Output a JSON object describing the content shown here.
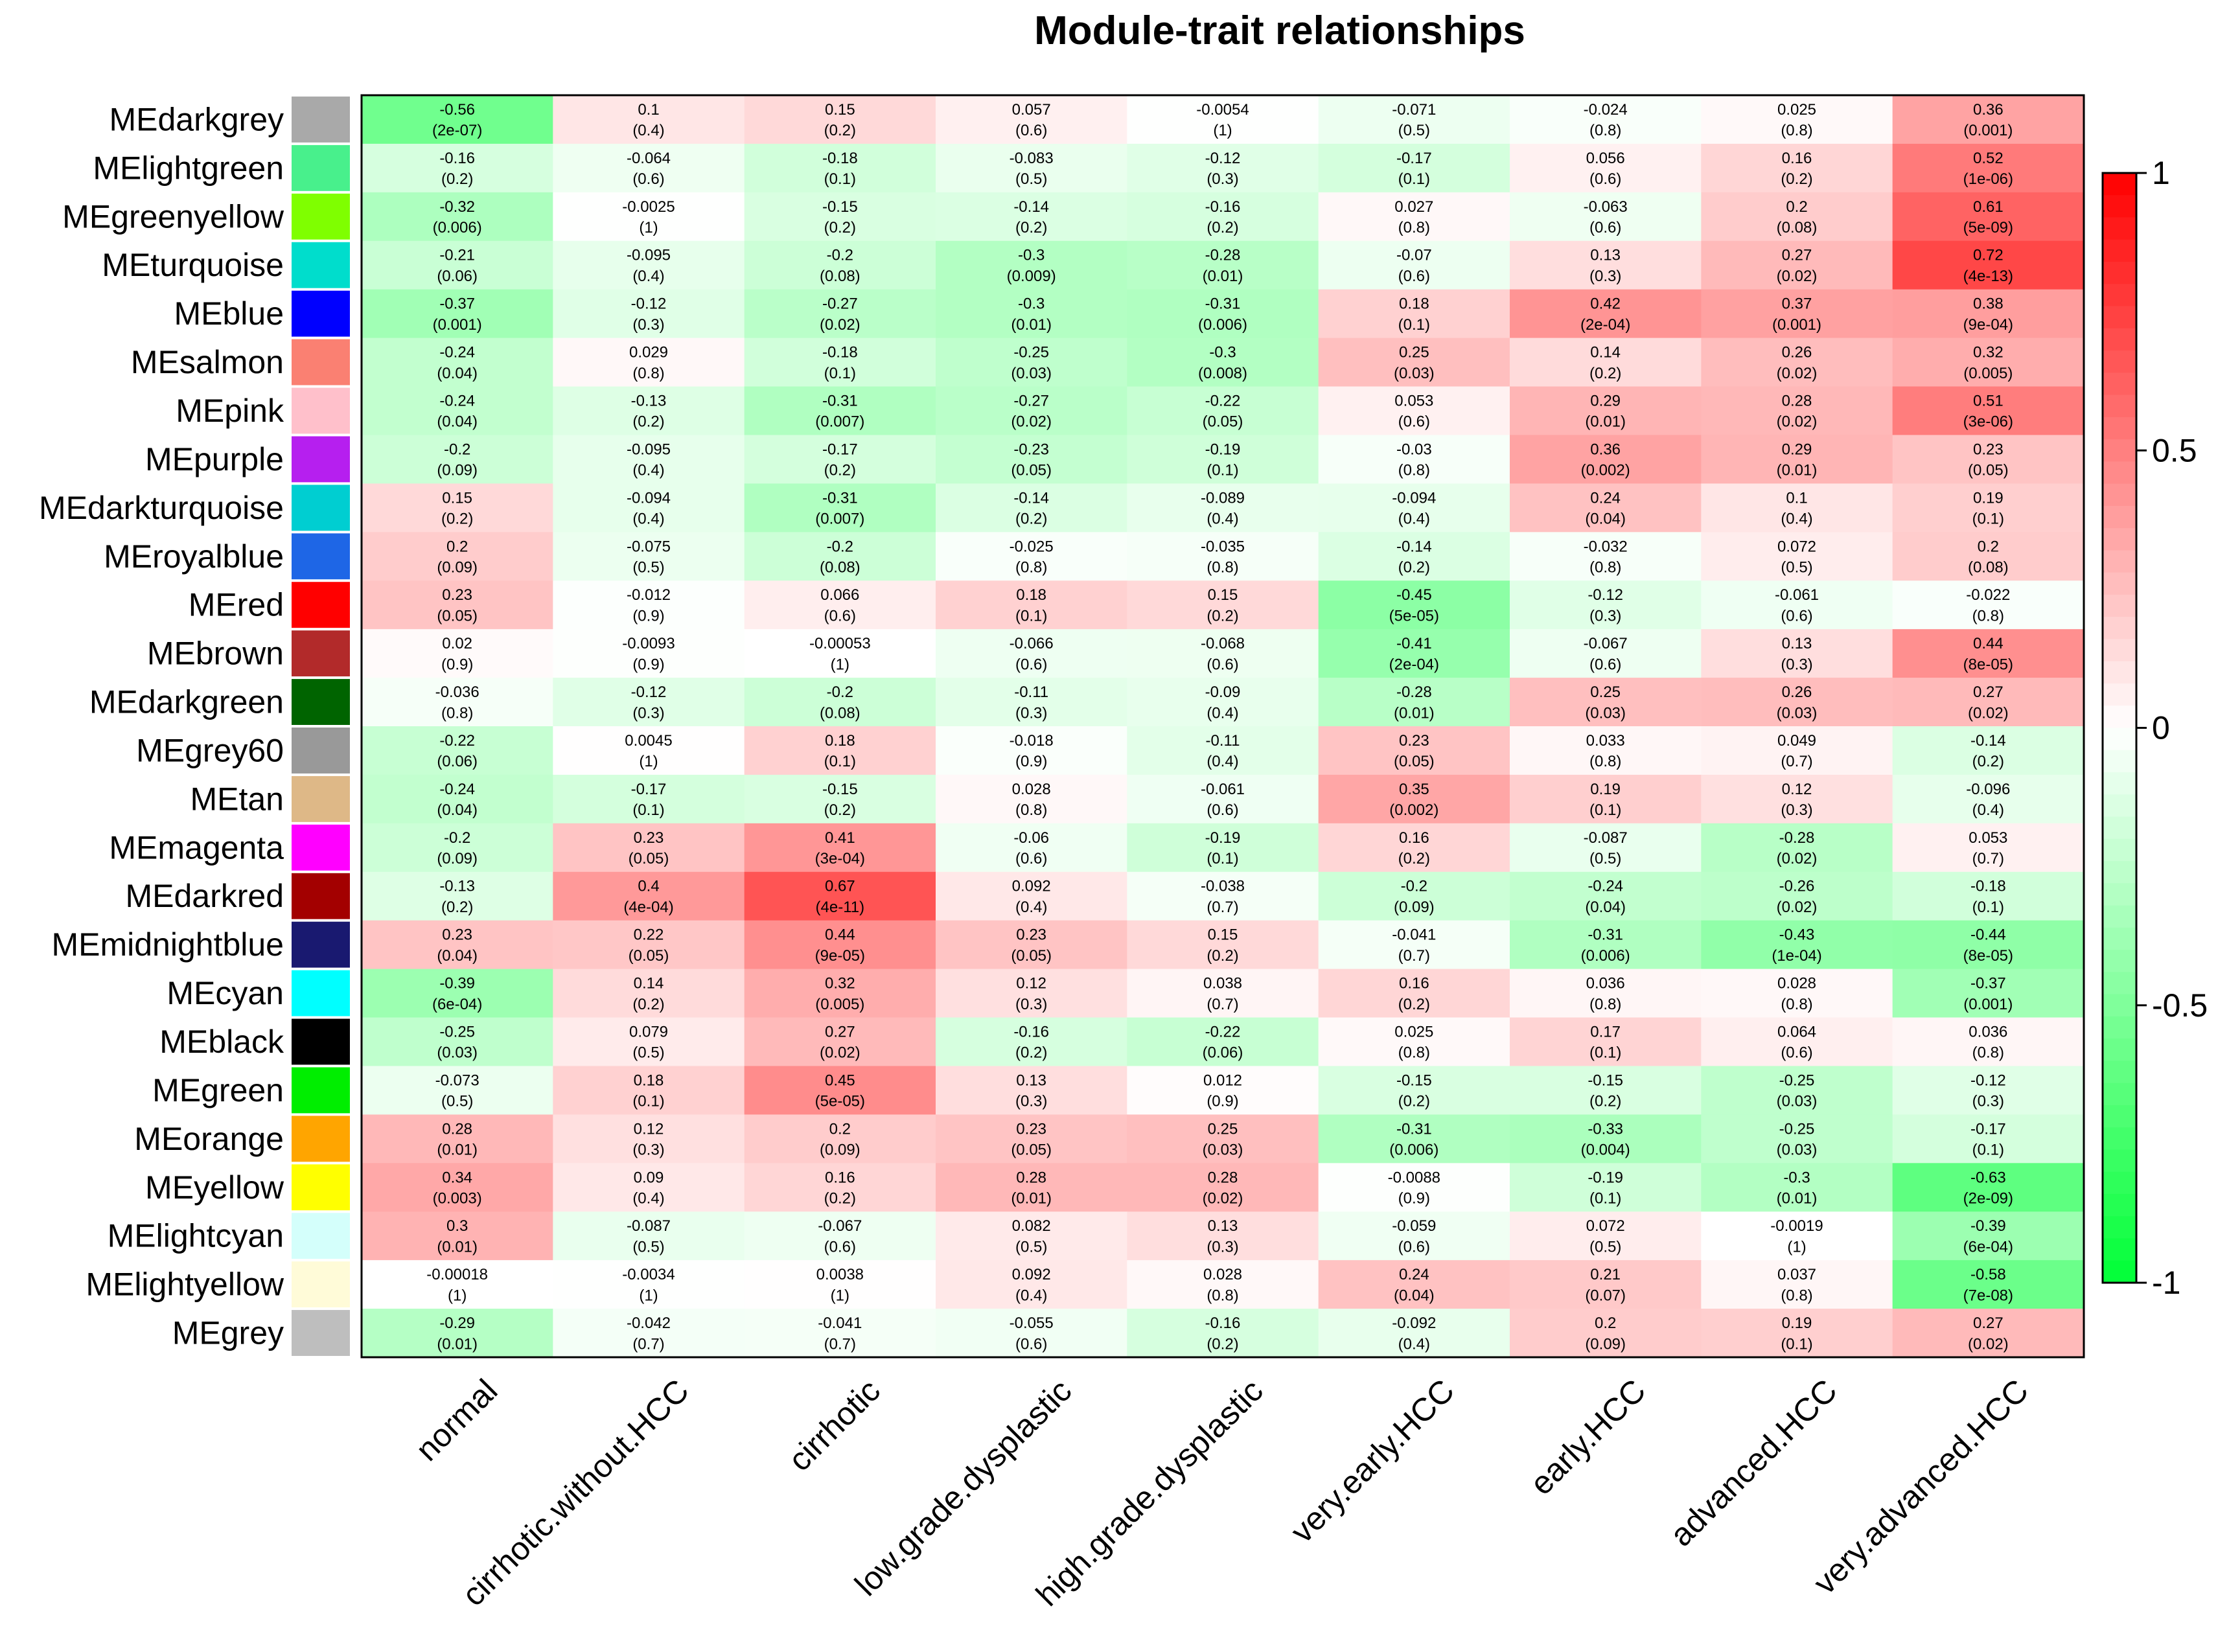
{
  "chart_data": {
    "type": "heatmap",
    "title": "Module-trait relationships",
    "xlabel": "",
    "ylabel": "",
    "colorscale": {
      "min": -1,
      "max": 1,
      "low_color": "#00ff36",
      "mid_color": "#ffffff",
      "high_color": "#ff0000",
      "ticks": [
        1,
        0.5,
        0,
        -0.5,
        -1
      ],
      "tick_labels": [
        "1",
        "0.5",
        "0",
        "-0.5",
        "-1"
      ]
    },
    "columns": [
      "normal",
      "cirrhotic.without.HCC",
      "cirrhotic",
      "low.grade.dysplastic",
      "high.grade.dysplastic",
      "very.early.HCC",
      "early.HCC",
      "advanced.HCC",
      "very.advanced.HCC"
    ],
    "rows": [
      {
        "name": "MEdarkgrey",
        "color": "#a9a9a9",
        "corr": [
          "-0.56",
          "0.1",
          "0.15",
          "0.057",
          "-0.0054",
          "-0.071",
          "-0.024",
          "0.025",
          "0.36"
        ],
        "p": [
          "(2e-07)",
          "(0.4)",
          "(0.2)",
          "(0.6)",
          "(1)",
          "(0.5)",
          "(0.8)",
          "(0.8)",
          "(0.001)"
        ]
      },
      {
        "name": "MElightgreen",
        "color": "#48f08c",
        "corr": [
          "-0.16",
          "-0.064",
          "-0.18",
          "-0.083",
          "-0.12",
          "-0.17",
          "0.056",
          "0.16",
          "0.52"
        ],
        "p": [
          "(0.2)",
          "(0.6)",
          "(0.1)",
          "(0.5)",
          "(0.3)",
          "(0.1)",
          "(0.6)",
          "(0.2)",
          "(1e-06)"
        ]
      },
      {
        "name": "MEgreenyellow",
        "color": "#7fff00",
        "corr": [
          "-0.32",
          "-0.0025",
          "-0.15",
          "-0.14",
          "-0.16",
          "0.027",
          "-0.063",
          "0.2",
          "0.61"
        ],
        "p": [
          "(0.006)",
          "(1)",
          "(0.2)",
          "(0.2)",
          "(0.2)",
          "(0.8)",
          "(0.6)",
          "(0.08)",
          "(5e-09)"
        ]
      },
      {
        "name": "MEturquoise",
        "color": "#00ddcc",
        "corr": [
          "-0.21",
          "-0.095",
          "-0.2",
          "-0.3",
          "-0.28",
          "-0.07",
          "0.13",
          "0.27",
          "0.72"
        ],
        "p": [
          "(0.06)",
          "(0.4)",
          "(0.08)",
          "(0.009)",
          "(0.01)",
          "(0.6)",
          "(0.3)",
          "(0.02)",
          "(4e-13)"
        ]
      },
      {
        "name": "MEblue",
        "color": "#0000ff",
        "corr": [
          "-0.37",
          "-0.12",
          "-0.27",
          "-0.3",
          "-0.31",
          "0.18",
          "0.42",
          "0.37",
          "0.38"
        ],
        "p": [
          "(0.001)",
          "(0.3)",
          "(0.02)",
          "(0.01)",
          "(0.006)",
          "(0.1)",
          "(2e-04)",
          "(0.001)",
          "(9e-04)"
        ]
      },
      {
        "name": "MEsalmon",
        "color": "#fa8072",
        "corr": [
          "-0.24",
          "0.029",
          "-0.18",
          "-0.25",
          "-0.3",
          "0.25",
          "0.14",
          "0.26",
          "0.32"
        ],
        "p": [
          "(0.04)",
          "(0.8)",
          "(0.1)",
          "(0.03)",
          "(0.008)",
          "(0.03)",
          "(0.2)",
          "(0.02)",
          "(0.005)"
        ]
      },
      {
        "name": "MEpink",
        "color": "#ffc0cb",
        "corr": [
          "-0.24",
          "-0.13",
          "-0.31",
          "-0.27",
          "-0.22",
          "0.053",
          "0.29",
          "0.28",
          "0.51"
        ],
        "p": [
          "(0.04)",
          "(0.2)",
          "(0.007)",
          "(0.02)",
          "(0.05)",
          "(0.6)",
          "(0.01)",
          "(0.02)",
          "(3e-06)"
        ]
      },
      {
        "name": "MEpurple",
        "color": "#b61fef",
        "corr": [
          "-0.2",
          "-0.095",
          "-0.17",
          "-0.23",
          "-0.19",
          "-0.03",
          "0.36",
          "0.29",
          "0.23"
        ],
        "p": [
          "(0.09)",
          "(0.4)",
          "(0.2)",
          "(0.05)",
          "(0.1)",
          "(0.8)",
          "(0.002)",
          "(0.01)",
          "(0.05)"
        ]
      },
      {
        "name": "MEdarkturquoise",
        "color": "#00ced1",
        "corr": [
          "0.15",
          "-0.094",
          "-0.31",
          "-0.14",
          "-0.089",
          "-0.094",
          "0.24",
          "0.1",
          "0.19"
        ],
        "p": [
          "(0.2)",
          "(0.4)",
          "(0.007)",
          "(0.2)",
          "(0.4)",
          "(0.4)",
          "(0.04)",
          "(0.4)",
          "(0.1)"
        ]
      },
      {
        "name": "MEroyalblue",
        "color": "#1e66e6",
        "corr": [
          "0.2",
          "-0.075",
          "-0.2",
          "-0.025",
          "-0.035",
          "-0.14",
          "-0.032",
          "0.072",
          "0.2"
        ],
        "p": [
          "(0.09)",
          "(0.5)",
          "(0.08)",
          "(0.8)",
          "(0.8)",
          "(0.2)",
          "(0.8)",
          "(0.5)",
          "(0.08)"
        ]
      },
      {
        "name": "MEred",
        "color": "#ff0000",
        "corr": [
          "0.23",
          "-0.012",
          "0.066",
          "0.18",
          "0.15",
          "-0.45",
          "-0.12",
          "-0.061",
          "-0.022"
        ],
        "p": [
          "(0.05)",
          "(0.9)",
          "(0.6)",
          "(0.1)",
          "(0.2)",
          "(5e-05)",
          "(0.3)",
          "(0.6)",
          "(0.8)"
        ]
      },
      {
        "name": "MEbrown",
        "color": "#b22a2a",
        "corr": [
          "0.02",
          "-0.0093",
          "-0.00053",
          "-0.066",
          "-0.068",
          "-0.41",
          "-0.067",
          "0.13",
          "0.44"
        ],
        "p": [
          "(0.9)",
          "(0.9)",
          "(1)",
          "(0.6)",
          "(0.6)",
          "(2e-04)",
          "(0.6)",
          "(0.3)",
          "(8e-05)"
        ]
      },
      {
        "name": "MEdarkgreen",
        "color": "#006400",
        "corr": [
          "-0.036",
          "-0.12",
          "-0.2",
          "-0.11",
          "-0.09",
          "-0.28",
          "0.25",
          "0.26",
          "0.27"
        ],
        "p": [
          "(0.8)",
          "(0.3)",
          "(0.08)",
          "(0.3)",
          "(0.4)",
          "(0.01)",
          "(0.03)",
          "(0.03)",
          "(0.02)"
        ]
      },
      {
        "name": "MEgrey60",
        "color": "#999999",
        "corr": [
          "-0.22",
          "0.0045",
          "0.18",
          "-0.018",
          "-0.11",
          "0.23",
          "0.033",
          "0.049",
          "-0.14"
        ],
        "p": [
          "(0.06)",
          "(1)",
          "(0.1)",
          "(0.9)",
          "(0.4)",
          "(0.05)",
          "(0.8)",
          "(0.7)",
          "(0.2)"
        ]
      },
      {
        "name": "MEtan",
        "color": "#deb887",
        "corr": [
          "-0.24",
          "-0.17",
          "-0.15",
          "0.028",
          "-0.061",
          "0.35",
          "0.19",
          "0.12",
          "-0.096"
        ],
        "p": [
          "(0.04)",
          "(0.1)",
          "(0.2)",
          "(0.8)",
          "(0.6)",
          "(0.002)",
          "(0.1)",
          "(0.3)",
          "(0.4)"
        ]
      },
      {
        "name": "MEmagenta",
        "color": "#ff00ff",
        "corr": [
          "-0.2",
          "0.23",
          "0.41",
          "-0.06",
          "-0.19",
          "0.16",
          "-0.087",
          "-0.28",
          "0.053"
        ],
        "p": [
          "(0.09)",
          "(0.05)",
          "(3e-04)",
          "(0.6)",
          "(0.1)",
          "(0.2)",
          "(0.5)",
          "(0.02)",
          "(0.7)"
        ]
      },
      {
        "name": "MEdarkred",
        "color": "#a30000",
        "corr": [
          "-0.13",
          "0.4",
          "0.67",
          "0.092",
          "-0.038",
          "-0.2",
          "-0.24",
          "-0.26",
          "-0.18"
        ],
        "p": [
          "(0.2)",
          "(4e-04)",
          "(4e-11)",
          "(0.4)",
          "(0.7)",
          "(0.09)",
          "(0.04)",
          "(0.02)",
          "(0.1)"
        ]
      },
      {
        "name": "MEmidnightblue",
        "color": "#191970",
        "corr": [
          "0.23",
          "0.22",
          "0.44",
          "0.23",
          "0.15",
          "-0.041",
          "-0.31",
          "-0.43",
          "-0.44"
        ],
        "p": [
          "(0.04)",
          "(0.05)",
          "(9e-05)",
          "(0.05)",
          "(0.2)",
          "(0.7)",
          "(0.006)",
          "(1e-04)",
          "(8e-05)"
        ]
      },
      {
        "name": "MEcyan",
        "color": "#00ffff",
        "corr": [
          "-0.39",
          "0.14",
          "0.32",
          "0.12",
          "0.038",
          "0.16",
          "0.036",
          "0.028",
          "-0.37"
        ],
        "p": [
          "(6e-04)",
          "(0.2)",
          "(0.005)",
          "(0.3)",
          "(0.7)",
          "(0.2)",
          "(0.8)",
          "(0.8)",
          "(0.001)"
        ]
      },
      {
        "name": "MEblack",
        "color": "#000000",
        "corr": [
          "-0.25",
          "0.079",
          "0.27",
          "-0.16",
          "-0.22",
          "0.025",
          "0.17",
          "0.064",
          "0.036"
        ],
        "p": [
          "(0.03)",
          "(0.5)",
          "(0.02)",
          "(0.2)",
          "(0.06)",
          "(0.8)",
          "(0.1)",
          "(0.6)",
          "(0.8)"
        ]
      },
      {
        "name": "MEgreen",
        "color": "#00ee00",
        "corr": [
          "-0.073",
          "0.18",
          "0.45",
          "0.13",
          "0.012",
          "-0.15",
          "-0.15",
          "-0.25",
          "-0.12"
        ],
        "p": [
          "(0.5)",
          "(0.1)",
          "(5e-05)",
          "(0.3)",
          "(0.9)",
          "(0.2)",
          "(0.2)",
          "(0.03)",
          "(0.3)"
        ]
      },
      {
        "name": "MEorange",
        "color": "#ffa500",
        "corr": [
          "0.28",
          "0.12",
          "0.2",
          "0.23",
          "0.25",
          "-0.31",
          "-0.33",
          "-0.25",
          "-0.17"
        ],
        "p": [
          "(0.01)",
          "(0.3)",
          "(0.09)",
          "(0.05)",
          "(0.03)",
          "(0.006)",
          "(0.004)",
          "(0.03)",
          "(0.1)"
        ]
      },
      {
        "name": "MEyellow",
        "color": "#ffff00",
        "corr": [
          "0.34",
          "0.09",
          "0.16",
          "0.28",
          "0.28",
          "-0.0088",
          "-0.19",
          "-0.3",
          "-0.63"
        ],
        "p": [
          "(0.003)",
          "(0.4)",
          "(0.2)",
          "(0.01)",
          "(0.02)",
          "(0.9)",
          "(0.1)",
          "(0.01)",
          "(2e-09)"
        ]
      },
      {
        "name": "MElightcyan",
        "color": "#d4fffb",
        "corr": [
          "0.3",
          "-0.087",
          "-0.067",
          "0.082",
          "0.13",
          "-0.059",
          "0.072",
          "-0.0019",
          "-0.39"
        ],
        "p": [
          "(0.01)",
          "(0.5)",
          "(0.6)",
          "(0.5)",
          "(0.3)",
          "(0.6)",
          "(0.5)",
          "(1)",
          "(6e-04)"
        ]
      },
      {
        "name": "MElightyellow",
        "color": "#fffbd8",
        "corr": [
          "-0.00018",
          "-0.0034",
          "0.0038",
          "0.092",
          "0.028",
          "0.24",
          "0.21",
          "0.037",
          "-0.58"
        ],
        "p": [
          "(1)",
          "(1)",
          "(1)",
          "(0.4)",
          "(0.8)",
          "(0.04)",
          "(0.07)",
          "(0.8)",
          "(7e-08)"
        ]
      },
      {
        "name": "MEgrey",
        "color": "#bebebe",
        "corr": [
          "-0.29",
          "-0.042",
          "-0.041",
          "-0.055",
          "-0.16",
          "-0.092",
          "0.2",
          "0.19",
          "0.27"
        ],
        "p": [
          "(0.01)",
          "(0.7)",
          "(0.7)",
          "(0.6)",
          "(0.2)",
          "(0.4)",
          "(0.09)",
          "(0.1)",
          "(0.02)"
        ]
      }
    ]
  }
}
